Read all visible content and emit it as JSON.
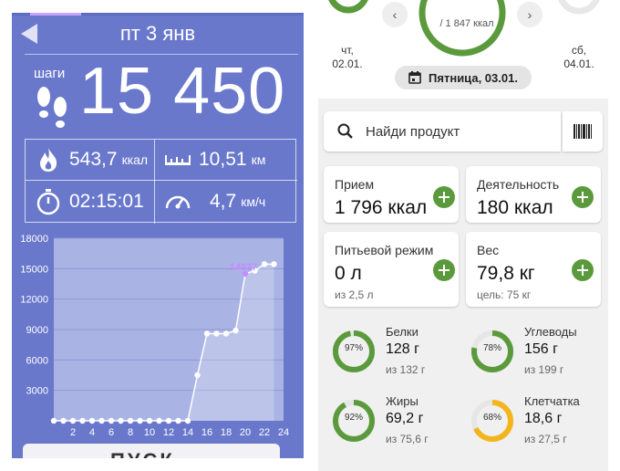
{
  "left": {
    "date": "пт 3 янв",
    "steps_label": "шаги",
    "steps": "15 450",
    "stats": {
      "calories_value": "543,7",
      "calories_unit": "ккал",
      "distance_value": "10,51",
      "distance_unit": "км",
      "duration_value": "02:15:01",
      "speed_value": "4,7",
      "speed_unit": "км/ч"
    },
    "bottom_button_partial": "ПУСК"
  },
  "chart_data": {
    "type": "line",
    "y_ticks": [
      "18000",
      "15000",
      "12000",
      "9000",
      "6000",
      "3000"
    ],
    "x_ticks": [
      "2",
      "4",
      "6",
      "8",
      "10",
      "12",
      "14",
      "16",
      "18",
      "20",
      "22",
      "24"
    ],
    "ylim": [
      0,
      18000
    ],
    "x": [
      0,
      1,
      2,
      3,
      4,
      5,
      6,
      7,
      8,
      9,
      10,
      11,
      12,
      13,
      14,
      15,
      16,
      17,
      18,
      19,
      20,
      21,
      22,
      23
    ],
    "values": [
      0,
      0,
      0,
      0,
      0,
      0,
      0,
      0,
      0,
      0,
      0,
      0,
      0,
      0,
      0,
      4500,
      8600,
      8600,
      8600,
      8900,
      14500,
      14800,
      15450,
      15450
    ],
    "highlight_label": "14837",
    "colors": {
      "line": "#ffffff",
      "highlight": "#c58cff",
      "bg": "#6a78cc",
      "plot": "#aab4e4"
    }
  },
  "right": {
    "top_ring_label": "/ 1 847 ккал",
    "days": [
      {
        "dow": "чт,",
        "date": "02.01."
      },
      {
        "dow": "сб,",
        "date": "04.01."
      }
    ],
    "nav_prev": "‹",
    "nav_next": "›",
    "date_pill": "Пятница, 03.01.",
    "search_placeholder": "Найди продукт",
    "tiles": {
      "intake": {
        "title": "Прием",
        "value": "1 796 ккал"
      },
      "activity": {
        "title": "Деятельность",
        "value": "180 ккал"
      },
      "water": {
        "title": "Питьевой режим",
        "value": "0 л",
        "sub": "из 2,5 л"
      },
      "weight": {
        "title": "Вес",
        "value": "79,8 кг",
        "sub": "цель: 75 кг"
      }
    },
    "macros": [
      {
        "name": "Белки",
        "amount": "128 г",
        "of": "из 132 г",
        "pct_label": "97%",
        "pct": 0.97,
        "color": "#5b9a3c"
      },
      {
        "name": "Углеводы",
        "amount": "156 г",
        "of": "из 199 г",
        "pct_label": "78%",
        "pct": 0.78,
        "color": "#5b9a3c"
      },
      {
        "name": "Жиры",
        "amount": "69,2 г",
        "of": "из 75,6 г",
        "pct_label": "92%",
        "pct": 0.92,
        "color": "#5b9a3c"
      },
      {
        "name": "Клетчатка",
        "amount": "18,6 г",
        "of": "из 27,5 г",
        "pct_label": "68%",
        "pct": 0.68,
        "color": "#f3b51b"
      }
    ]
  },
  "colors": {
    "accent_green": "#5b9a3c",
    "accent_yellow": "#f3b51b",
    "left_bg": "#6a78cc"
  }
}
